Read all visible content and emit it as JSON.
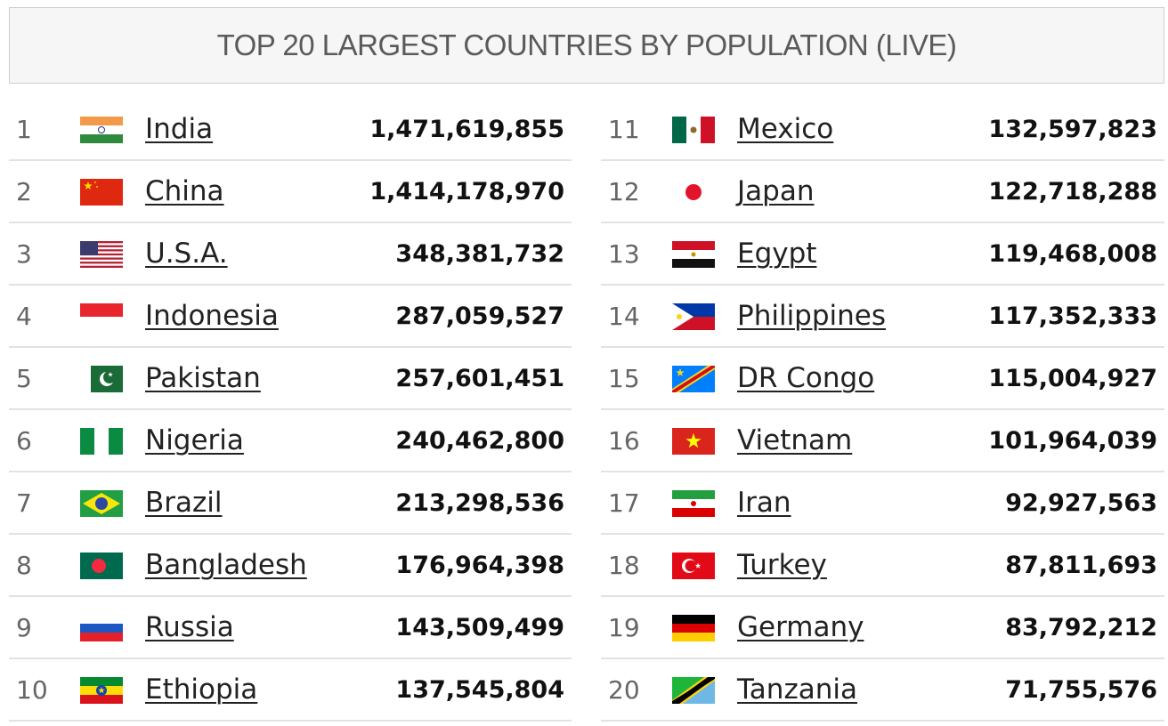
{
  "header": {
    "title": "TOP 20 LARGEST COUNTRIES BY POPULATION (LIVE)"
  },
  "table": {
    "rows": [
      [
        1,
        "India",
        "1,471,619,855"
      ],
      [
        2,
        "China",
        "1,414,178,970"
      ],
      [
        3,
        "U.S.A.",
        "348,381,732"
      ],
      [
        4,
        "Indonesia",
        "287,059,527"
      ],
      [
        5,
        "Pakistan",
        "257,601,451"
      ],
      [
        6,
        "Nigeria",
        "240,462,800"
      ],
      [
        7,
        "Brazil",
        "213,298,536"
      ],
      [
        8,
        "Bangladesh",
        "176,964,398"
      ],
      [
        9,
        "Russia",
        "143,509,499"
      ],
      [
        10,
        "Ethiopia",
        "137,545,804"
      ],
      [
        11,
        "Mexico",
        "132,597,823"
      ],
      [
        12,
        "Japan",
        "122,718,288"
      ],
      [
        13,
        "Egypt",
        "119,468,008"
      ],
      [
        14,
        "Philippines",
        "117,352,333"
      ],
      [
        15,
        "DR Congo",
        "115,004,927"
      ],
      [
        16,
        "Vietnam",
        "101,964,039"
      ],
      [
        17,
        "Iran",
        "92,927,563"
      ],
      [
        18,
        "Turkey",
        "87,811,693"
      ],
      [
        19,
        "Germany",
        "83,792,212"
      ],
      [
        20,
        "Tanzania",
        "71,755,576"
      ]
    ]
  }
}
